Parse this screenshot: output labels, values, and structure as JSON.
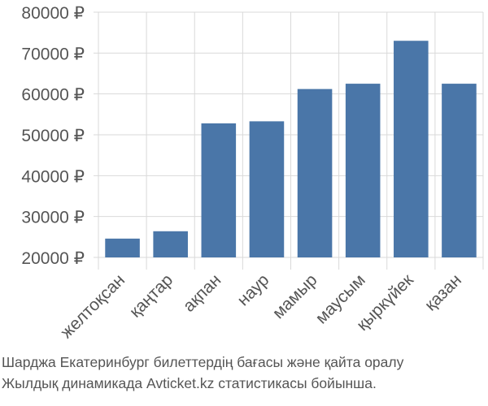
{
  "chart_data": {
    "type": "bar",
    "title": "",
    "xlabel": "",
    "ylabel": "",
    "categories": [
      "желтоқсан",
      "қаңтар",
      "ақпан",
      "наур",
      "мамыр",
      "маусым",
      "қыркүйек",
      "қазан"
    ],
    "values": [
      24600,
      26400,
      52800,
      53300,
      61200,
      62500,
      73000,
      62500
    ],
    "ylim": [
      17500,
      80000
    ],
    "yticks": [
      20000,
      30000,
      40000,
      50000,
      60000,
      70000,
      80000
    ],
    "currency_suffix": " ₽",
    "bar_color": "#4a76a8",
    "grid": true
  },
  "caption": {
    "line1": "Шарджа Екатеринбург билеттердің бағасы және қайта оралу",
    "line2": "Жылдық динамикада Avticket.kz статистикасы бойынша."
  }
}
